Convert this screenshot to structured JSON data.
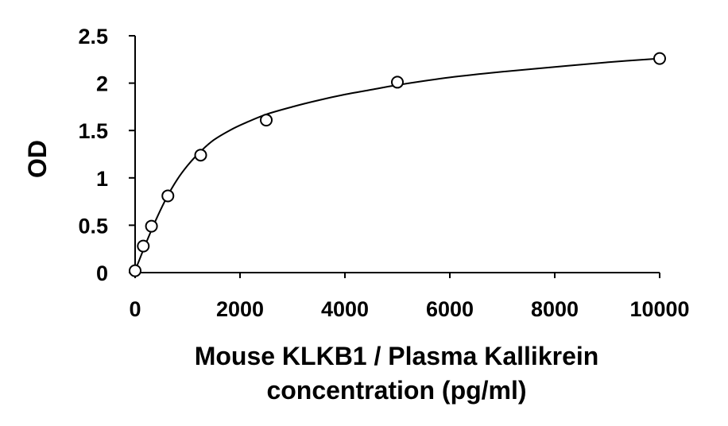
{
  "chart_data": {
    "type": "scatter",
    "title": "",
    "xlabel": [
      "Mouse KLKB1 / Plasma Kallikrein",
      "concentration (pg/ml)"
    ],
    "ylabel": "OD",
    "xlim": [
      0,
      10000
    ],
    "ylim": [
      0,
      2.5
    ],
    "x_ticks": [
      0,
      2000,
      4000,
      6000,
      8000,
      10000
    ],
    "y_ticks": [
      0,
      0.5,
      1,
      1.5,
      2,
      2.5
    ],
    "x_tick_labels": [
      "0",
      "2000",
      "4000",
      "6000",
      "8000",
      "10000"
    ],
    "y_tick_labels": [
      "0",
      "0.5",
      "1",
      "1.5",
      "2",
      "2.5"
    ],
    "grid": false,
    "series": [
      {
        "points": [
          {
            "x": 0,
            "y": 0.02
          },
          {
            "x": 156,
            "y": 0.28
          },
          {
            "x": 312,
            "y": 0.49
          },
          {
            "x": 625,
            "y": 0.81
          },
          {
            "x": 1250,
            "y": 1.24
          },
          {
            "x": 2500,
            "y": 1.61
          },
          {
            "x": 5000,
            "y": 2.01
          },
          {
            "x": 10000,
            "y": 2.26
          }
        ],
        "marker": "open-circle",
        "fit": "four-parameter-logistic"
      }
    ],
    "fit_curve": [
      {
        "x": 0,
        "y": 0.02
      },
      {
        "x": 200,
        "y": 0.3
      },
      {
        "x": 400,
        "y": 0.56
      },
      {
        "x": 600,
        "y": 0.79
      },
      {
        "x": 800,
        "y": 0.98
      },
      {
        "x": 1000,
        "y": 1.13
      },
      {
        "x": 1250,
        "y": 1.28
      },
      {
        "x": 1500,
        "y": 1.4
      },
      {
        "x": 1800,
        "y": 1.5
      },
      {
        "x": 2100,
        "y": 1.58
      },
      {
        "x": 2500,
        "y": 1.67
      },
      {
        "x": 3000,
        "y": 1.75
      },
      {
        "x": 3500,
        "y": 1.82
      },
      {
        "x": 4000,
        "y": 1.88
      },
      {
        "x": 4500,
        "y": 1.93
      },
      {
        "x": 5000,
        "y": 1.98
      },
      {
        "x": 6000,
        "y": 2.06
      },
      {
        "x": 7000,
        "y": 2.12
      },
      {
        "x": 8000,
        "y": 2.17
      },
      {
        "x": 9000,
        "y": 2.22
      },
      {
        "x": 10000,
        "y": 2.26
      }
    ]
  }
}
